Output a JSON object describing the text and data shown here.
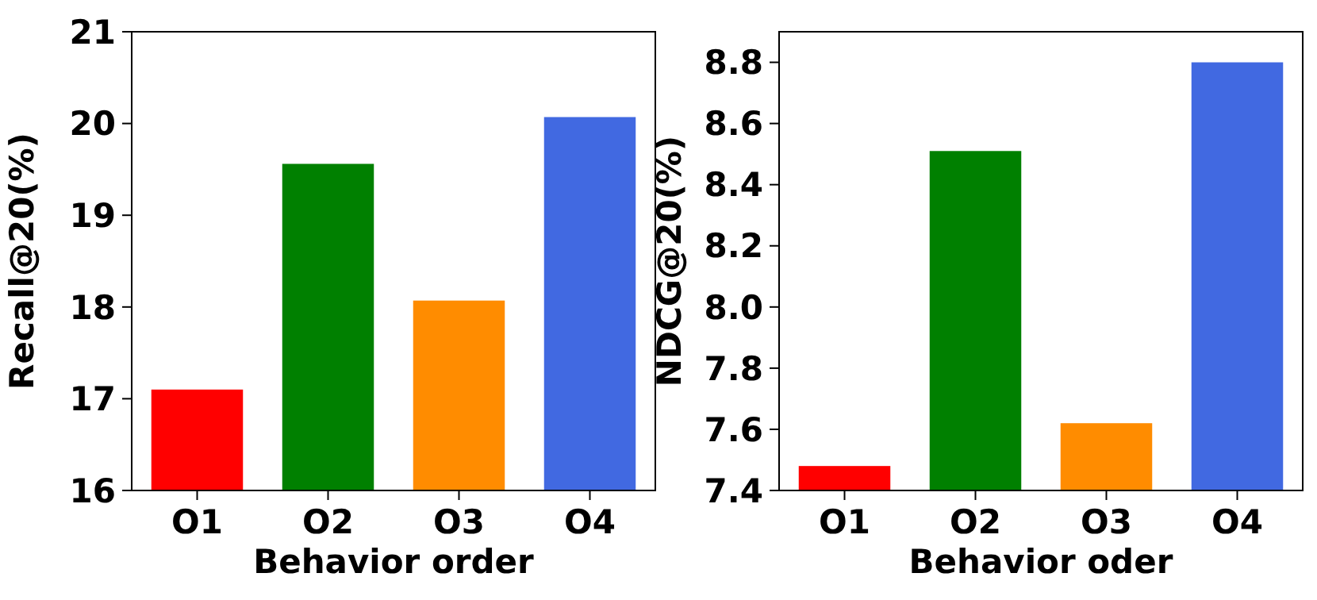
{
  "chart_data": [
    {
      "type": "bar",
      "xlabel": "Behavior order",
      "ylabel": "Recall@20(%)",
      "categories": [
        "O1",
        "O2",
        "O3",
        "O4"
      ],
      "values": [
        17.1,
        19.56,
        18.07,
        20.07
      ],
      "colors": [
        "#ff0000",
        "#008000",
        "#ff8c00",
        "#4169e1"
      ],
      "ylim": [
        16,
        21
      ],
      "yticks": [
        16,
        17,
        18,
        19,
        20,
        21
      ],
      "grid": false
    },
    {
      "type": "bar",
      "xlabel": "Behavior oder",
      "ylabel": "NDCG@20(%)",
      "categories": [
        "O1",
        "O2",
        "O3",
        "O4"
      ],
      "values": [
        7.48,
        8.51,
        7.62,
        8.8
      ],
      "colors": [
        "#ff0000",
        "#008000",
        "#ff8c00",
        "#4169e1"
      ],
      "ylim": [
        7.4,
        8.9
      ],
      "yticks": [
        {
          "value": 7.4,
          "label": "7.4"
        },
        {
          "value": 7.6,
          "label": "7.6"
        },
        {
          "value": 7.8,
          "label": "7.8"
        },
        {
          "value": 8.0,
          "label": "8.0"
        },
        {
          "value": 8.2,
          "label": "8.2"
        },
        {
          "value": 8.4,
          "label": "8.4"
        },
        {
          "value": 8.6,
          "label": "8.6"
        },
        {
          "value": 8.8,
          "label": "8.8"
        }
      ],
      "grid": false
    }
  ]
}
